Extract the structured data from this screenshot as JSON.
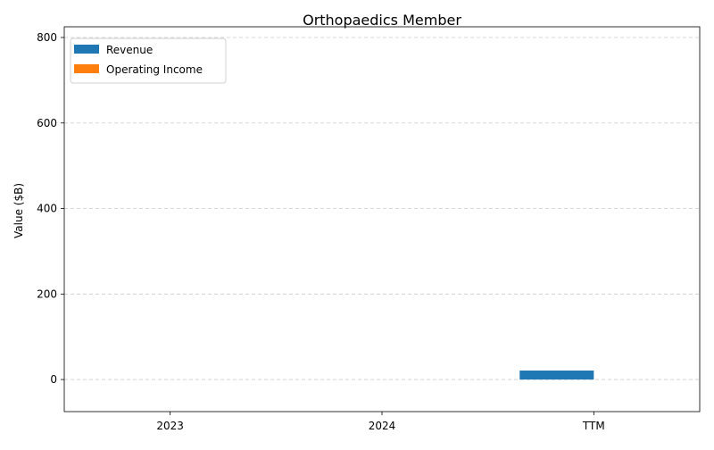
{
  "chart_data": {
    "type": "bar",
    "title": "Orthopaedics Member",
    "xlabel": "",
    "ylabel": "Value ($B)",
    "categories": [
      "2023",
      "2024",
      "TTM"
    ],
    "series": [
      {
        "name": "Revenue",
        "color": "#1f77b4",
        "values": [
          0,
          0,
          21
        ]
      },
      {
        "name": "Operating Income",
        "color": "#ff7f0e",
        "values": [
          0,
          0,
          0
        ]
      }
    ],
    "ylim": [
      -75,
      825
    ],
    "yticks": [
      0,
      200,
      400,
      600,
      800
    ],
    "grid": "y-dashed",
    "legend_position": "upper-left"
  }
}
